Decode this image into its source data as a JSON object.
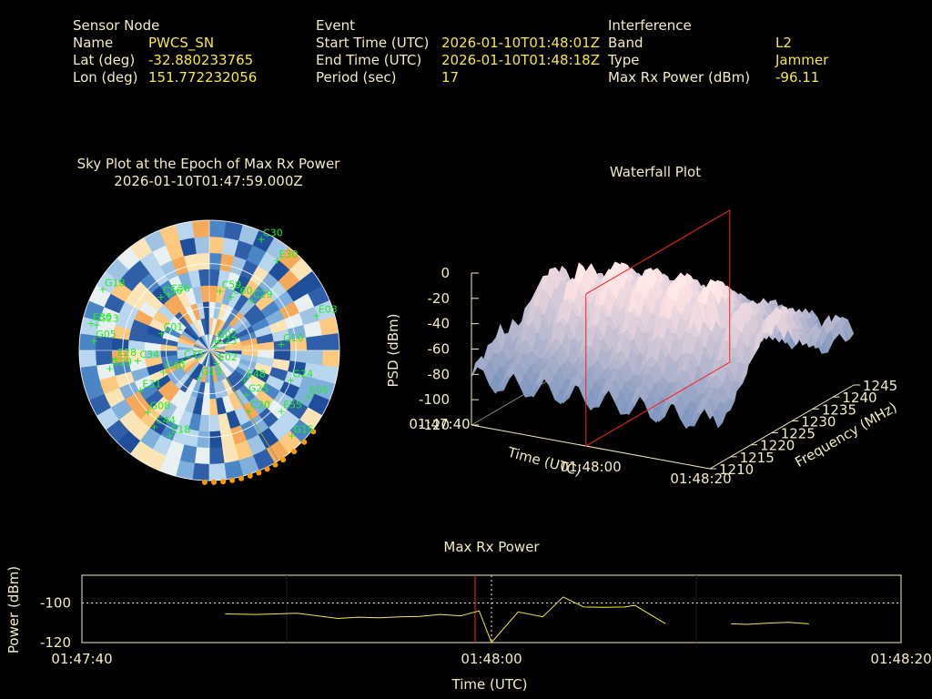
{
  "header": {
    "sensor": {
      "heading": "Sensor Node",
      "rows": [
        {
          "label": "Name",
          "value": "PWCS_SN"
        },
        {
          "label": "Lat (deg)",
          "value": "-32.880233765"
        },
        {
          "label": "Lon (deg)",
          "value": "151.772232056"
        }
      ]
    },
    "event": {
      "heading": "Event",
      "rows": [
        {
          "label": "Start Time (UTC)",
          "value": "2026-01-10T01:48:01Z"
        },
        {
          "label": "End Time (UTC)",
          "value": "2026-01-10T01:48:18Z"
        },
        {
          "label": "Period (sec)",
          "value": "17"
        }
      ]
    },
    "interference": {
      "heading": "Interference",
      "rows": [
        {
          "label": "Band",
          "value": "L2"
        },
        {
          "label": "Type",
          "value": "Jammer"
        },
        {
          "label": "Max Rx Power (dBm)",
          "value": "-96.11"
        }
      ]
    }
  },
  "colors": {
    "background": "#000000",
    "label": "#f3ebc0",
    "value": "#f5e83a",
    "satellite": "#22ee22",
    "marker": "#ff9900",
    "line": "#f5e83a",
    "cursor": "#ff2020"
  },
  "chart_data": [
    {
      "type": "scatter",
      "title": "Sky Plot at the Epoch of Max Rx Power",
      "subtitle": "2026-01-10T01:47:59.000Z",
      "satellites": [
        {
          "id": "C30",
          "az": 25,
          "el": 5
        },
        {
          "id": "E30",
          "az": 37,
          "el": 12
        },
        {
          "id": "E03",
          "az": 72,
          "el": 12
        },
        {
          "id": "C59",
          "az": 10,
          "el": 48
        },
        {
          "id": "C60",
          "az": 22,
          "el": 50
        },
        {
          "id": "C29",
          "az": 40,
          "el": 45
        },
        {
          "id": "G18",
          "az": 300,
          "el": 5
        },
        {
          "id": "E36",
          "az": 283,
          "el": 6
        },
        {
          "id": "G05",
          "az": 275,
          "el": 10
        },
        {
          "id": "G23",
          "az": 283,
          "el": 10
        },
        {
          "id": "C56",
          "az": 318,
          "el": 40
        },
        {
          "id": "C36",
          "az": 324,
          "el": 42
        },
        {
          "id": "G10",
          "az": 85,
          "el": 40
        },
        {
          "id": "C01",
          "az": 290,
          "el": 55
        },
        {
          "id": "C34",
          "az": 262,
          "el": 40
        },
        {
          "id": "E28",
          "az": 265,
          "el": 25
        },
        {
          "id": "G29",
          "az": 260,
          "el": 20
        },
        {
          "id": "C40",
          "az": 245,
          "el": 55
        },
        {
          "id": "C35",
          "az": 250,
          "el": 70
        },
        {
          "id": "G02",
          "az": 30,
          "el": 82
        },
        {
          "id": "C23",
          "az": 60,
          "el": 85
        },
        {
          "id": "E02",
          "az": 150,
          "el": 80
        },
        {
          "id": "G13",
          "az": 200,
          "el": 70
        },
        {
          "id": "E31",
          "az": 240,
          "el": 35
        },
        {
          "id": "G08",
          "az": 225,
          "el": 30
        },
        {
          "id": "C44",
          "az": 216,
          "el": 25
        },
        {
          "id": "E18",
          "az": 205,
          "el": 25
        },
        {
          "id": "E48",
          "az": 130,
          "el": 58
        },
        {
          "id": "G25",
          "az": 140,
          "el": 50
        },
        {
          "id": "G24",
          "az": 110,
          "el": 30
        },
        {
          "id": "C20",
          "az": 147,
          "el": 40
        },
        {
          "id": "E55",
          "az": 130,
          "el": 25
        },
        {
          "id": "E05",
          "az": 115,
          "el": 15
        },
        {
          "id": "G15",
          "az": 136,
          "el": 8
        }
      ],
      "elevation_rings": [
        0,
        30,
        60
      ]
    },
    {
      "type": "surface",
      "title": "Waterfall Plot",
      "xlabel": "Time (UTC)",
      "ylabel": "Frequency (MHz)",
      "zlabel": "PSD (dBm)",
      "x_ticks": [
        "01:47:40",
        "01:48:00",
        "01:48:20"
      ],
      "y_ticks": [
        1210,
        1215,
        1220,
        1225,
        1230,
        1235,
        1240,
        1245
      ],
      "z_ticks": [
        0,
        -20,
        -40,
        -60,
        -80,
        -100,
        -120
      ],
      "zlim": [
        -120,
        0
      ],
      "marker_time": "01:47:59"
    },
    {
      "type": "line",
      "title": "Max Rx Power",
      "xlabel": "Time (UTC)",
      "ylabel": "Power (dBm)",
      "x_ticks": [
        "01:47:40",
        "01:48:00",
        "01:48:20"
      ],
      "y_ticks": [
        -100,
        -120
      ],
      "ylim": [
        -120,
        -86
      ],
      "xlim_sec": [
        0,
        40
      ],
      "reference_line": -100,
      "max_marker_sec": 19.2,
      "event_marker_sec": 20,
      "series": [
        {
          "segments": [
            [
              [
                7.0,
                -105.5
              ],
              [
                8.5,
                -105.8
              ],
              [
                9.5,
                -105.5
              ],
              [
                10.5,
                -105.2
              ],
              [
                11.5,
                -106.5
              ],
              [
                12.5,
                -107.8
              ],
              [
                13.5,
                -107.2
              ],
              [
                14.5,
                -107.5
              ],
              [
                15.5,
                -107.0
              ],
              [
                16.5,
                -106.8
              ],
              [
                17.5,
                -105.8
              ],
              [
                18.5,
                -106.5
              ],
              [
                19.4,
                -104.0
              ],
              [
                20.0,
                -120.0
              ],
              [
                21.3,
                -104.5
              ],
              [
                22.5,
                -107.0
              ],
              [
                23.5,
                -97.0
              ],
              [
                24.5,
                -102.0
              ],
              [
                25.5,
                -102.2
              ],
              [
                26.5,
                -102.0
              ],
              [
                27.0,
                -101.2
              ],
              [
                28.5,
                -110.5
              ]
            ],
            [
              [
                31.7,
                -110.5
              ],
              [
                32.5,
                -110.8
              ],
              [
                33.5,
                -110.2
              ],
              [
                34.5,
                -109.8
              ],
              [
                35.5,
                -110.5
              ]
            ]
          ]
        }
      ]
    }
  ]
}
